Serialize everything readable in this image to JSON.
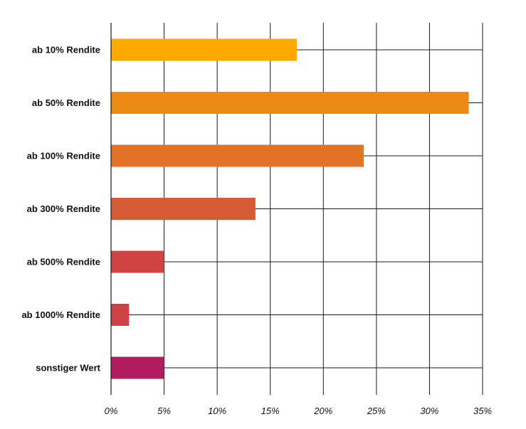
{
  "chart_data": {
    "type": "bar",
    "orientation": "horizontal",
    "categories": [
      "ab 10% Rendite",
      "ab 50% Rendite",
      "ab 100% Rendite",
      "ab 300% Rendite",
      "ab 500% Rendite",
      "ab 1000% Rendite",
      "sonstiger Wert"
    ],
    "values": [
      17.5,
      33.7,
      23.8,
      13.6,
      5.0,
      1.7,
      5.0
    ],
    "colors": [
      "#FDA900",
      "#EC8A14",
      "#E17226",
      "#D65A35",
      "#CF4442",
      "#CD4244",
      "#B01C5E"
    ],
    "xticks": [
      "0%",
      "5%",
      "10%",
      "15%",
      "20%",
      "25%",
      "30%",
      "35%"
    ],
    "xlim": [
      0,
      35
    ],
    "grid": true,
    "title": "",
    "xlabel": "",
    "ylabel": ""
  }
}
